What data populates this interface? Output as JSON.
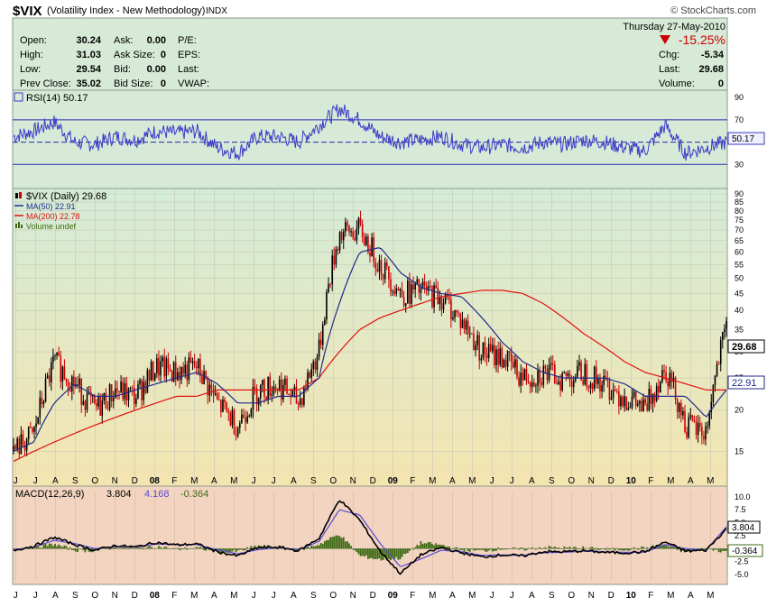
{
  "header": {
    "symbol": "$VIX",
    "name": "(Volatility Index - New Methodology)",
    "exchange": "INDX",
    "watermark": "© StockCharts.com",
    "date": "Thursday  27-May-2010",
    "change_pct": "-15.25%",
    "quote_rows": [
      [
        {
          "label": "Open:",
          "value": "30.24"
        },
        {
          "label": "Ask:",
          "value": "0.00"
        },
        {
          "label": "P/E:",
          "value": ""
        }
      ],
      [
        {
          "label": "High:",
          "value": "31.03"
        },
        {
          "label": "Ask Size:",
          "value": "0"
        },
        {
          "label": "EPS:",
          "value": ""
        }
      ],
      [
        {
          "label": "Low:",
          "value": "29.54"
        },
        {
          "label": "Bid:",
          "value": "0.00"
        },
        {
          "label": "Last:",
          "value": ""
        }
      ],
      [
        {
          "label": "Prev Close:",
          "value": "35.02"
        },
        {
          "label": "Bid Size:",
          "value": "0"
        },
        {
          "label": "VWAP:",
          "value": ""
        }
      ]
    ],
    "right_rows": [
      {
        "label": "Chg:",
        "value": "-5.34"
      },
      {
        "label": "Last:",
        "value": "29.68"
      },
      {
        "label": "Volume:",
        "value": "0"
      }
    ]
  },
  "colors": {
    "header_bg": "#d6ead7",
    "rsi_bg": "#d6ead7",
    "price_bg_top": "#d4ecd7",
    "price_bg_bottom": "#f4e4b0",
    "macd_bg": "#f2d4c0",
    "up": "#000000",
    "down": "#cc0000",
    "ma50": "#1f2a8c",
    "ma200": "#e0120f",
    "rsi_line": "#3b3bc8",
    "macd_line": "#000000",
    "signal_line": "#5a4ad8",
    "hist": "#3f6b14",
    "change_down": "#cc0000"
  },
  "rsi": {
    "label": "RSI(14) 50.17",
    "last_label": "50.17",
    "ticks": [
      "90",
      "70",
      "50",
      "30"
    ],
    "upper": 70,
    "lower": 30,
    "ylim": [
      10,
      95
    ]
  },
  "price": {
    "legend": [
      {
        "text": "$VIX (Daily) 29.68",
        "icon": "candlestick-icon",
        "color": "#000000"
      },
      {
        "text": "MA(50) 22.91",
        "icon": "line-icon",
        "color": "#1f2a8c"
      },
      {
        "text": "MA(200) 22.78",
        "icon": "line-icon",
        "color": "#e0120f"
      },
      {
        "text": "Volume undef",
        "icon": "volume-bars-icon",
        "color": "#3f6b14"
      }
    ],
    "last_label": "29.68",
    "ma50_label": "22.91",
    "ticks": [
      "90",
      "85",
      "80",
      "75",
      "70",
      "65",
      "60",
      "55",
      "50",
      "45",
      "40",
      "35",
      "30",
      "25",
      "20",
      "15"
    ],
    "log_scale": true,
    "ylim": [
      12,
      90
    ]
  },
  "macd": {
    "label": "MACD(12,26,9)",
    "macd_value": "3.804",
    "signal_value": "4.168",
    "hist_value": "-0.364",
    "ticks": [
      "10.0",
      "7.5",
      "5.0",
      "2.5",
      "-2.5",
      "-5.0"
    ],
    "last_macd": "3.804",
    "last_hist": "-0.364",
    "ylim": [
      -6.2,
      11.0
    ]
  },
  "x_axis": {
    "labels": [
      "J",
      "J",
      "A",
      "S",
      "O",
      "N",
      "D",
      "08",
      "F",
      "M",
      "A",
      "M",
      "J",
      "J",
      "A",
      "S",
      "O",
      "N",
      "D",
      "09",
      "F",
      "M",
      "A",
      "M",
      "J",
      "J",
      "A",
      "S",
      "O",
      "N",
      "D",
      "10",
      "F",
      "M",
      "A",
      "M"
    ]
  },
  "chart_data": {
    "type": "line",
    "title": "$VIX (Volatility Index - New Methodology)",
    "x": [
      "2007-06",
      "2007-07",
      "2007-08",
      "2007-09",
      "2007-10",
      "2007-11",
      "2007-12",
      "2008-01",
      "2008-02",
      "2008-03",
      "2008-04",
      "2008-05",
      "2008-06",
      "2008-07",
      "2008-08",
      "2008-09",
      "2008-10",
      "2008-11",
      "2008-12",
      "2009-01",
      "2009-02",
      "2009-03",
      "2009-04",
      "2009-05",
      "2009-06",
      "2009-07",
      "2009-08",
      "2009-09",
      "2009-10",
      "2009-11",
      "2009-12",
      "2010-01",
      "2010-02",
      "2010-03",
      "2010-04",
      "2010-05"
    ],
    "series": [
      {
        "name": "$VIX (Daily)",
        "values": [
          15,
          17,
          28,
          24,
          20,
          23,
          22,
          27,
          26,
          27,
          21,
          18,
          23,
          24,
          21,
          30,
          68,
          70,
          55,
          45,
          46,
          44,
          37,
          30,
          29,
          25,
          26,
          25,
          26,
          24,
          22,
          20,
          27,
          18,
          17,
          35
        ]
      },
      {
        "name": "MA(50)",
        "values": [
          15,
          16,
          21,
          24,
          22,
          22,
          23,
          24,
          25,
          26,
          24,
          21,
          21,
          22,
          22,
          25,
          42,
          60,
          62,
          52,
          47,
          45,
          44,
          38,
          32,
          28,
          26,
          25,
          25,
          25,
          24,
          22,
          22,
          22,
          19,
          23
        ]
      },
      {
        "name": "MA(200)",
        "values": [
          14,
          15,
          16,
          17,
          18,
          19,
          20,
          21,
          22,
          22,
          23,
          23,
          23,
          23,
          23,
          25,
          30,
          35,
          38,
          40,
          42,
          44,
          45,
          46,
          46,
          45,
          42,
          38,
          34,
          31,
          28,
          26,
          25,
          24,
          23,
          23
        ]
      },
      {
        "name": "RSI(14)",
        "values": [
          55,
          60,
          68,
          50,
          48,
          55,
          52,
          60,
          58,
          60,
          45,
          40,
          55,
          55,
          50,
          65,
          80,
          70,
          55,
          50,
          52,
          55,
          48,
          45,
          48,
          45,
          50,
          48,
          52,
          50,
          45,
          42,
          65,
          40,
          45,
          50
        ]
      },
      {
        "name": "MACD(12,26,9)",
        "values": [
          -0.3,
          0.5,
          2.2,
          0.8,
          -0.3,
          0.6,
          0.3,
          1.2,
          0.7,
          0.9,
          -0.6,
          -1.4,
          0.2,
          0.3,
          -0.4,
          2.0,
          9.5,
          5.5,
          -0.5,
          -4.8,
          -1.2,
          0.2,
          -0.8,
          -1.6,
          -1.2,
          -1.4,
          -0.6,
          -0.6,
          -0.4,
          -0.7,
          -0.8,
          -0.6,
          1.3,
          -0.5,
          -0.3,
          3.8
        ]
      },
      {
        "name": "Signal",
        "values": [
          -0.2,
          0.3,
          1.6,
          1.0,
          0.0,
          0.4,
          0.3,
          0.9,
          0.8,
          0.8,
          -0.2,
          -1.0,
          -0.2,
          0.2,
          -0.2,
          1.4,
          7.5,
          6.5,
          1.0,
          -3.5,
          -2.0,
          -0.3,
          -0.6,
          -1.3,
          -1.2,
          -1.3,
          -0.8,
          -0.7,
          -0.5,
          -0.6,
          -0.7,
          -0.7,
          0.8,
          0.0,
          -0.3,
          4.2
        ]
      }
    ],
    "xlabel": "",
    "ylabel": ""
  }
}
